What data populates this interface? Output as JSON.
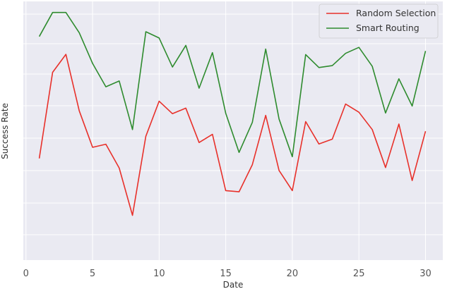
{
  "chart_data": {
    "type": "line",
    "title": "",
    "xlabel": "Date",
    "ylabel": "Success Rate",
    "x": [
      1,
      2,
      3,
      4,
      5,
      6,
      7,
      8,
      9,
      10,
      11,
      12,
      13,
      14,
      15,
      16,
      17,
      18,
      19,
      20,
      21,
      22,
      23,
      24,
      25,
      26,
      27,
      28,
      29,
      30
    ],
    "xlim": [
      -0.2,
      31.3
    ],
    "xticks": [
      0,
      5,
      10,
      15,
      20,
      25,
      30
    ],
    "ylim": [
      0,
      1
    ],
    "yticks_labeled": false,
    "grid": true,
    "legend_position": "top-right",
    "series": [
      {
        "name": "Random Selection",
        "color": "#e8302a",
        "values": [
          0.385,
          0.743,
          0.818,
          0.583,
          0.431,
          0.444,
          0.345,
          0.148,
          0.477,
          0.623,
          0.571,
          0.594,
          0.451,
          0.485,
          0.251,
          0.246,
          0.359,
          0.564,
          0.335,
          0.251,
          0.538,
          0.445,
          0.465,
          0.611,
          0.577,
          0.505,
          0.347,
          0.528,
          0.293,
          0.498
        ]
      },
      {
        "name": "Smart Routing",
        "color": "#2e8b2e",
        "values": [
          0.892,
          0.992,
          0.992,
          0.908,
          0.78,
          0.683,
          0.707,
          0.505,
          0.912,
          0.886,
          0.765,
          0.855,
          0.677,
          0.825,
          0.573,
          0.41,
          0.535,
          0.84,
          0.549,
          0.392,
          0.817,
          0.763,
          0.771,
          0.822,
          0.847,
          0.768,
          0.574,
          0.716,
          0.603,
          0.832
        ]
      }
    ]
  }
}
